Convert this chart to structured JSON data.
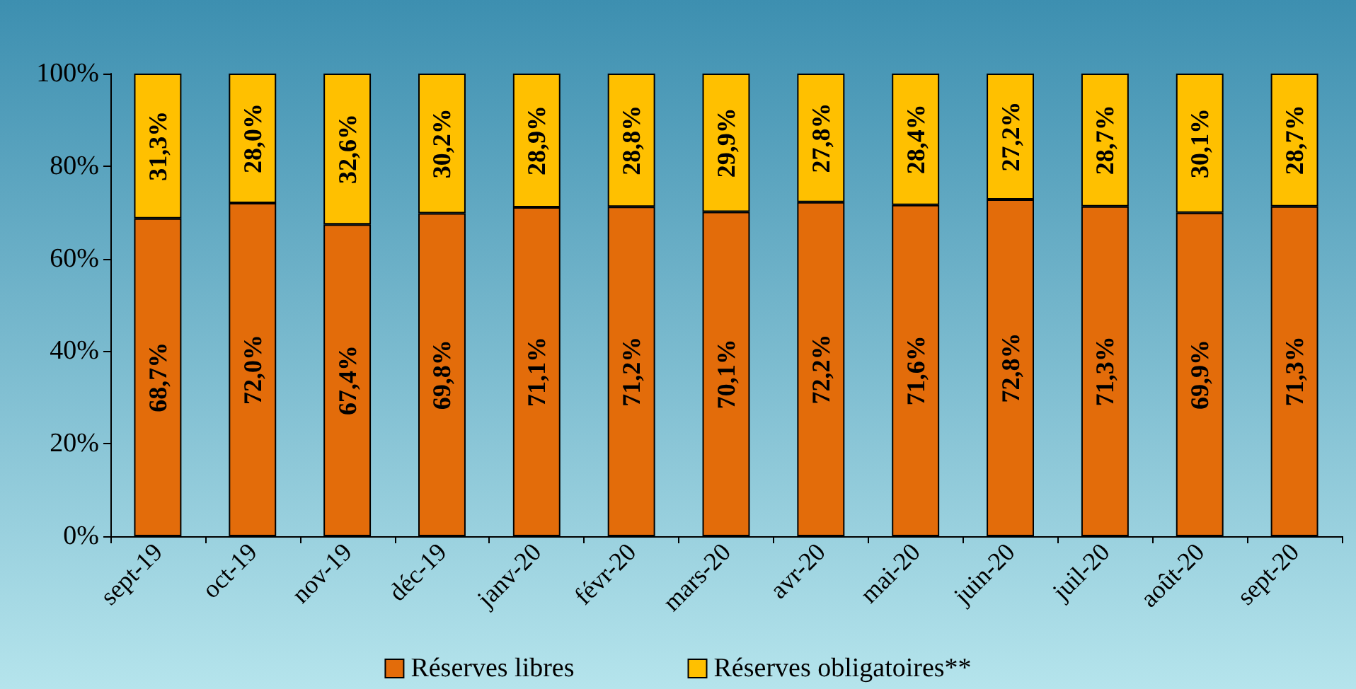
{
  "chart_data": {
    "type": "bar",
    "stacked": true,
    "categories": [
      "sept-19",
      "oct-19",
      "nov-19",
      "déc-19",
      "janv-20",
      "févr-20",
      "mars-20",
      "avr-20",
      "mai-20",
      "juin-20",
      "juil-20",
      "août-20",
      "sept-20"
    ],
    "series": [
      {
        "name": "Réserves libres",
        "color": "#e36c0a",
        "values": [
          68.7,
          72.0,
          67.4,
          69.8,
          71.1,
          71.2,
          70.1,
          72.2,
          71.6,
          72.8,
          71.3,
          69.9,
          71.3
        ],
        "value_labels": [
          "68,7%",
          "72,0%",
          "67,4%",
          "69,8%",
          "71,1%",
          "71,2%",
          "70,1%",
          "72,2%",
          "71,6%",
          "72,8%",
          "71,3%",
          "69,9%",
          "71,3%"
        ]
      },
      {
        "name": "Réserves obligatoires**",
        "color": "#ffc000",
        "values": [
          31.3,
          28.0,
          32.6,
          30.2,
          28.9,
          28.8,
          29.9,
          27.8,
          28.4,
          27.2,
          28.7,
          30.1,
          28.7
        ],
        "value_labels": [
          "31,3%",
          "28,0%",
          "32,6%",
          "30,2%",
          "28,9%",
          "28,8%",
          "29,9%",
          "27,8%",
          "28,4%",
          "27,2%",
          "28,7%",
          "30,1%",
          "28,7%"
        ]
      }
    ],
    "ylim": [
      0,
      100
    ],
    "yticks": [
      {
        "value": 0,
        "label": "0%"
      },
      {
        "value": 20,
        "label": "20%"
      },
      {
        "value": 40,
        "label": "40%"
      },
      {
        "value": 60,
        "label": "60%"
      },
      {
        "value": 80,
        "label": "80%"
      },
      {
        "value": 100,
        "label": "100%"
      }
    ],
    "grid": false,
    "legend": "bottom"
  }
}
